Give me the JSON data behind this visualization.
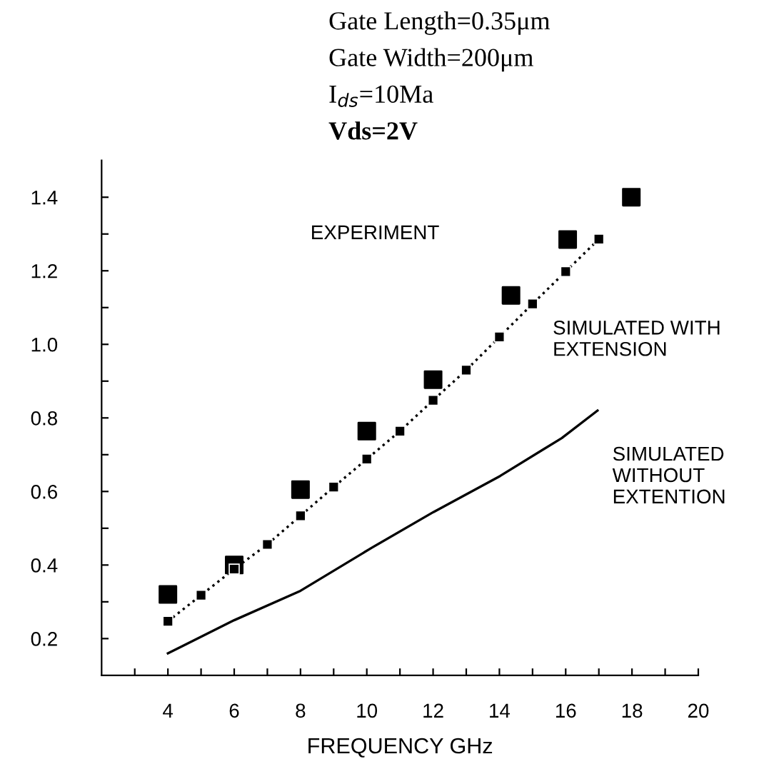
{
  "chart_data": {
    "type": "line",
    "xlabel": "FREQUENCY GHz",
    "annotations": [
      "Gate Length=0.35μm",
      "Gate Width=200μm",
      "I$_{ds}$=10Ma",
      "Vds=2V",
      "EXPERIMENT",
      "SIMULATED WITH\nEXTENSION",
      "SIMULATED\nWITHOUT\nEXTENTION"
    ],
    "series": [
      {
        "type": "scatter",
        "color": "#000000",
        "marker": "square",
        "x": [
          4,
          6,
          8,
          10,
          12,
          14.35,
          16.06,
          17.98
        ],
        "values": [
          0.32,
          0.4,
          0.605,
          0.764,
          0.904,
          1.133,
          1.285,
          1.4
        ]
      },
      {
        "color": "#000000",
        "marker": "square",
        "line_style": "dotted",
        "x": [
          4,
          5,
          6,
          7,
          8,
          9,
          10,
          11,
          12,
          13,
          14,
          15,
          16,
          17
        ],
        "values": [
          0.247,
          0.318,
          0.389,
          0.456,
          0.534,
          0.612,
          0.688,
          0.764,
          0.848,
          0.93,
          1.02,
          1.11,
          1.198,
          1.286
        ]
      },
      {
        "color": "#000000",
        "marker": "none",
        "line_style": "solid",
        "x": [
          4,
          6,
          8,
          10.15,
          12.01,
          14.02,
          15.88,
          16.96
        ],
        "values": [
          0.16,
          0.25,
          0.33,
          0.447,
          0.544,
          0.642,
          0.745,
          0.82
        ]
      }
    ],
    "xlim": [
      2,
      20
    ],
    "ylim": [
      0.1,
      1.5
    ],
    "xticks": [
      {
        "value": 3,
        "label": null
      },
      4,
      {
        "value": 5,
        "label": null
      },
      6,
      {
        "value": 7,
        "label": null
      },
      8,
      {
        "value": 9,
        "label": null
      },
      10,
      {
        "value": 11,
        "label": null
      },
      12,
      {
        "value": 13,
        "label": null
      },
      14,
      {
        "value": 15,
        "label": null
      },
      16,
      {
        "value": 17,
        "label": null
      },
      18,
      {
        "value": 19,
        "label": null
      },
      20
    ],
    "yticks": [
      0.2,
      {
        "value": 0.3,
        "label": null
      },
      0.4,
      {
        "value": 0.5,
        "label": null
      },
      0.6,
      {
        "value": 0.7,
        "label": null
      },
      0.8,
      {
        "value": 0.9,
        "label": null
      },
      {
        "value": 1.0,
        "label": "1.0"
      },
      {
        "value": 1.1,
        "label": null
      },
      1.2,
      {
        "value": 1.3,
        "label": null
      },
      1.4
    ],
    "grid": false,
    "legend": false
  }
}
